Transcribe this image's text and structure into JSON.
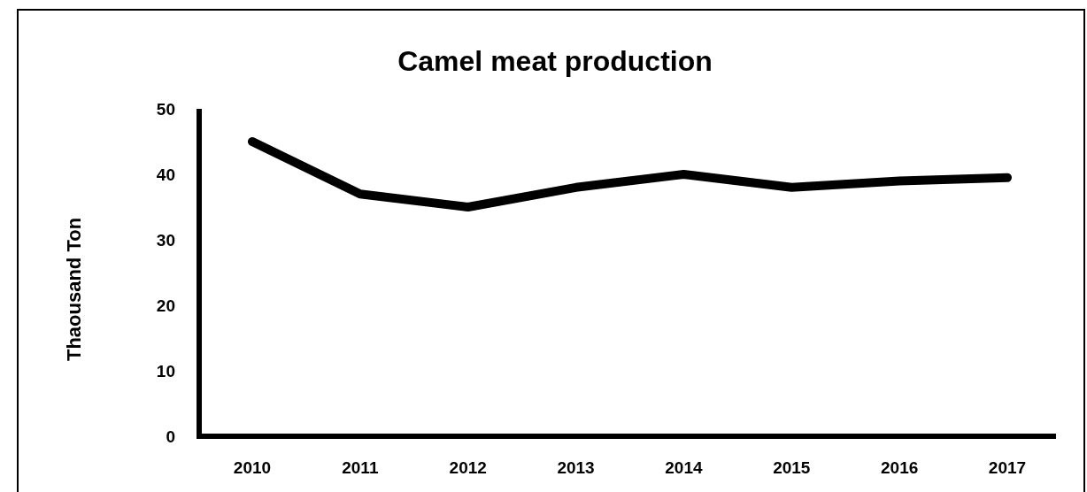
{
  "chart_data": {
    "type": "line",
    "title": "Camel meat production",
    "ylabel": "Thaousand Ton",
    "categories": [
      "2010",
      "2011",
      "2012",
      "2013",
      "2014",
      "2015",
      "2016",
      "2017"
    ],
    "series": [
      {
        "color": "#000000",
        "values": [
          45,
          37,
          35,
          38,
          40,
          38,
          39,
          39.5
        ]
      }
    ],
    "ylim": [
      0,
      50
    ],
    "yticks": [
      0,
      10,
      20,
      30,
      40,
      50
    ]
  }
}
